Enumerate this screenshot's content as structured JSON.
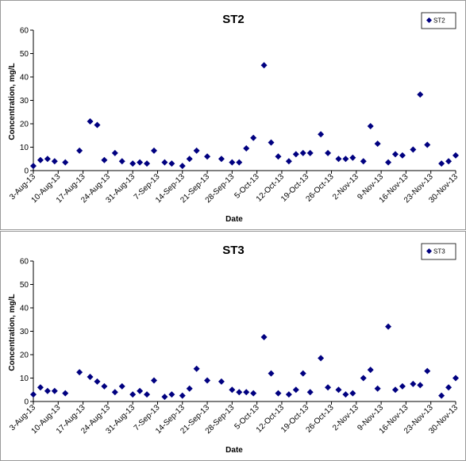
{
  "chart_data": [
    {
      "type": "scatter",
      "title": "ST2",
      "xlabel": "Date",
      "ylabel": "Concentration, mg/L",
      "ylim": [
        0,
        60
      ],
      "yticks": [
        "0",
        "10",
        "20",
        "30",
        "40",
        "50",
        "60"
      ],
      "xlim": [
        "2013-08-03",
        "2013-11-30"
      ],
      "xticks": [
        "3-Aug-13",
        "10-Aug-13",
        "17-Aug-13",
        "24-Aug-13",
        "31-Aug-13",
        "7-Sep-13",
        "14-Sep-13",
        "21-Sep-13",
        "28-Sep-13",
        "5-Oct-13",
        "12-Oct-13",
        "19-Oct-13",
        "26-Oct-13",
        "2-Nov-13",
        "9-Nov-13",
        "16-Nov-13",
        "23-Nov-13",
        "30-Nov-13"
      ],
      "legend_position": "top-right",
      "grid": false,
      "marker_color": "#000080",
      "series": [
        {
          "name": "ST2",
          "points": [
            {
              "x": "2013-08-03",
              "y": 2
            },
            {
              "x": "2013-08-05",
              "y": 4.5
            },
            {
              "x": "2013-08-07",
              "y": 5
            },
            {
              "x": "2013-08-09",
              "y": 4
            },
            {
              "x": "2013-08-12",
              "y": 3.5
            },
            {
              "x": "2013-08-16",
              "y": 8.5
            },
            {
              "x": "2013-08-19",
              "y": 21
            },
            {
              "x": "2013-08-21",
              "y": 19.5
            },
            {
              "x": "2013-08-23",
              "y": 4.5
            },
            {
              "x": "2013-08-26",
              "y": 7.5
            },
            {
              "x": "2013-08-28",
              "y": 4
            },
            {
              "x": "2013-08-31",
              "y": 3
            },
            {
              "x": "2013-09-02",
              "y": 3.5
            },
            {
              "x": "2013-09-04",
              "y": 3
            },
            {
              "x": "2013-09-06",
              "y": 8.5
            },
            {
              "x": "2013-09-09",
              "y": 3.5
            },
            {
              "x": "2013-09-11",
              "y": 3
            },
            {
              "x": "2013-09-14",
              "y": 2
            },
            {
              "x": "2013-09-16",
              "y": 5
            },
            {
              "x": "2013-09-18",
              "y": 8.5
            },
            {
              "x": "2013-09-21",
              "y": 6
            },
            {
              "x": "2013-09-25",
              "y": 5
            },
            {
              "x": "2013-09-28",
              "y": 3.5
            },
            {
              "x": "2013-09-30",
              "y": 3.5
            },
            {
              "x": "2013-10-02",
              "y": 9.5
            },
            {
              "x": "2013-10-04",
              "y": 14
            },
            {
              "x": "2013-10-07",
              "y": 45
            },
            {
              "x": "2013-10-09",
              "y": 12
            },
            {
              "x": "2013-10-11",
              "y": 6
            },
            {
              "x": "2013-10-14",
              "y": 4
            },
            {
              "x": "2013-10-16",
              "y": 7
            },
            {
              "x": "2013-10-18",
              "y": 7.5
            },
            {
              "x": "2013-10-20",
              "y": 7.5
            },
            {
              "x": "2013-10-23",
              "y": 15.5
            },
            {
              "x": "2013-10-25",
              "y": 7.5
            },
            {
              "x": "2013-10-28",
              "y": 5
            },
            {
              "x": "2013-10-30",
              "y": 5
            },
            {
              "x": "2013-11-01",
              "y": 5.5
            },
            {
              "x": "2013-11-04",
              "y": 4
            },
            {
              "x": "2013-11-06",
              "y": 19
            },
            {
              "x": "2013-11-08",
              "y": 11.5
            },
            {
              "x": "2013-11-11",
              "y": 3.5
            },
            {
              "x": "2013-11-13",
              "y": 7
            },
            {
              "x": "2013-11-15",
              "y": 6.5
            },
            {
              "x": "2013-11-18",
              "y": 9
            },
            {
              "x": "2013-11-20",
              "y": 32.5
            },
            {
              "x": "2013-11-22",
              "y": 11
            },
            {
              "x": "2013-11-26",
              "y": 3
            },
            {
              "x": "2013-11-28",
              "y": 4
            },
            {
              "x": "2013-11-30",
              "y": 6.5
            }
          ]
        }
      ]
    },
    {
      "type": "scatter",
      "title": "ST3",
      "xlabel": "Date",
      "ylabel": "Concentration, mg/L",
      "ylim": [
        0,
        60
      ],
      "yticks": [
        "0",
        "10",
        "20",
        "30",
        "40",
        "50",
        "60"
      ],
      "xlim": [
        "2013-08-03",
        "2013-11-30"
      ],
      "xticks": [
        "3-Aug-13",
        "10-Aug-13",
        "17-Aug-13",
        "24-Aug-13",
        "31-Aug-13",
        "7-Sep-13",
        "14-Sep-13",
        "21-Sep-13",
        "28-Sep-13",
        "5-Oct-13",
        "12-Oct-13",
        "19-Oct-13",
        "26-Oct-13",
        "2-Nov-13",
        "9-Nov-13",
        "16-Nov-13",
        "23-Nov-13",
        "30-Nov-13"
      ],
      "legend_position": "top-right",
      "grid": false,
      "marker_color": "#000080",
      "series": [
        {
          "name": "ST3",
          "points": [
            {
              "x": "2013-08-03",
              "y": 3
            },
            {
              "x": "2013-08-05",
              "y": 6
            },
            {
              "x": "2013-08-07",
              "y": 4.5
            },
            {
              "x": "2013-08-09",
              "y": 4.5
            },
            {
              "x": "2013-08-12",
              "y": 3.5
            },
            {
              "x": "2013-08-16",
              "y": 12.5
            },
            {
              "x": "2013-08-19",
              "y": 10.5
            },
            {
              "x": "2013-08-21",
              "y": 8.5
            },
            {
              "x": "2013-08-23",
              "y": 6.5
            },
            {
              "x": "2013-08-26",
              "y": 4
            },
            {
              "x": "2013-08-28",
              "y": 6.5
            },
            {
              "x": "2013-08-31",
              "y": 3
            },
            {
              "x": "2013-09-02",
              "y": 4.5
            },
            {
              "x": "2013-09-04",
              "y": 3
            },
            {
              "x": "2013-09-06",
              "y": 9
            },
            {
              "x": "2013-09-09",
              "y": 2
            },
            {
              "x": "2013-09-11",
              "y": 3
            },
            {
              "x": "2013-09-14",
              "y": 2.5
            },
            {
              "x": "2013-09-16",
              "y": 5.5
            },
            {
              "x": "2013-09-18",
              "y": 14
            },
            {
              "x": "2013-09-21",
              "y": 9
            },
            {
              "x": "2013-09-25",
              "y": 8.5
            },
            {
              "x": "2013-09-28",
              "y": 5
            },
            {
              "x": "2013-09-30",
              "y": 4
            },
            {
              "x": "2013-10-02",
              "y": 4
            },
            {
              "x": "2013-10-04",
              "y": 3.5
            },
            {
              "x": "2013-10-07",
              "y": 27.5
            },
            {
              "x": "2013-10-09",
              "y": 12
            },
            {
              "x": "2013-10-11",
              "y": 3.5
            },
            {
              "x": "2013-10-14",
              "y": 3
            },
            {
              "x": "2013-10-16",
              "y": 5
            },
            {
              "x": "2013-10-18",
              "y": 12
            },
            {
              "x": "2013-10-20",
              "y": 4
            },
            {
              "x": "2013-10-23",
              "y": 18.5
            },
            {
              "x": "2013-10-25",
              "y": 6
            },
            {
              "x": "2013-10-28",
              "y": 5
            },
            {
              "x": "2013-10-30",
              "y": 3
            },
            {
              "x": "2013-11-01",
              "y": 3.5
            },
            {
              "x": "2013-11-04",
              "y": 10
            },
            {
              "x": "2013-11-06",
              "y": 13.5
            },
            {
              "x": "2013-11-08",
              "y": 5.5
            },
            {
              "x": "2013-11-11",
              "y": 32
            },
            {
              "x": "2013-11-13",
              "y": 5
            },
            {
              "x": "2013-11-15",
              "y": 6.5
            },
            {
              "x": "2013-11-18",
              "y": 7.5
            },
            {
              "x": "2013-11-20",
              "y": 7
            },
            {
              "x": "2013-11-22",
              "y": 13
            },
            {
              "x": "2013-11-26",
              "y": 2.5
            },
            {
              "x": "2013-11-28",
              "y": 6
            },
            {
              "x": "2013-11-30",
              "y": 10
            }
          ]
        }
      ]
    }
  ]
}
